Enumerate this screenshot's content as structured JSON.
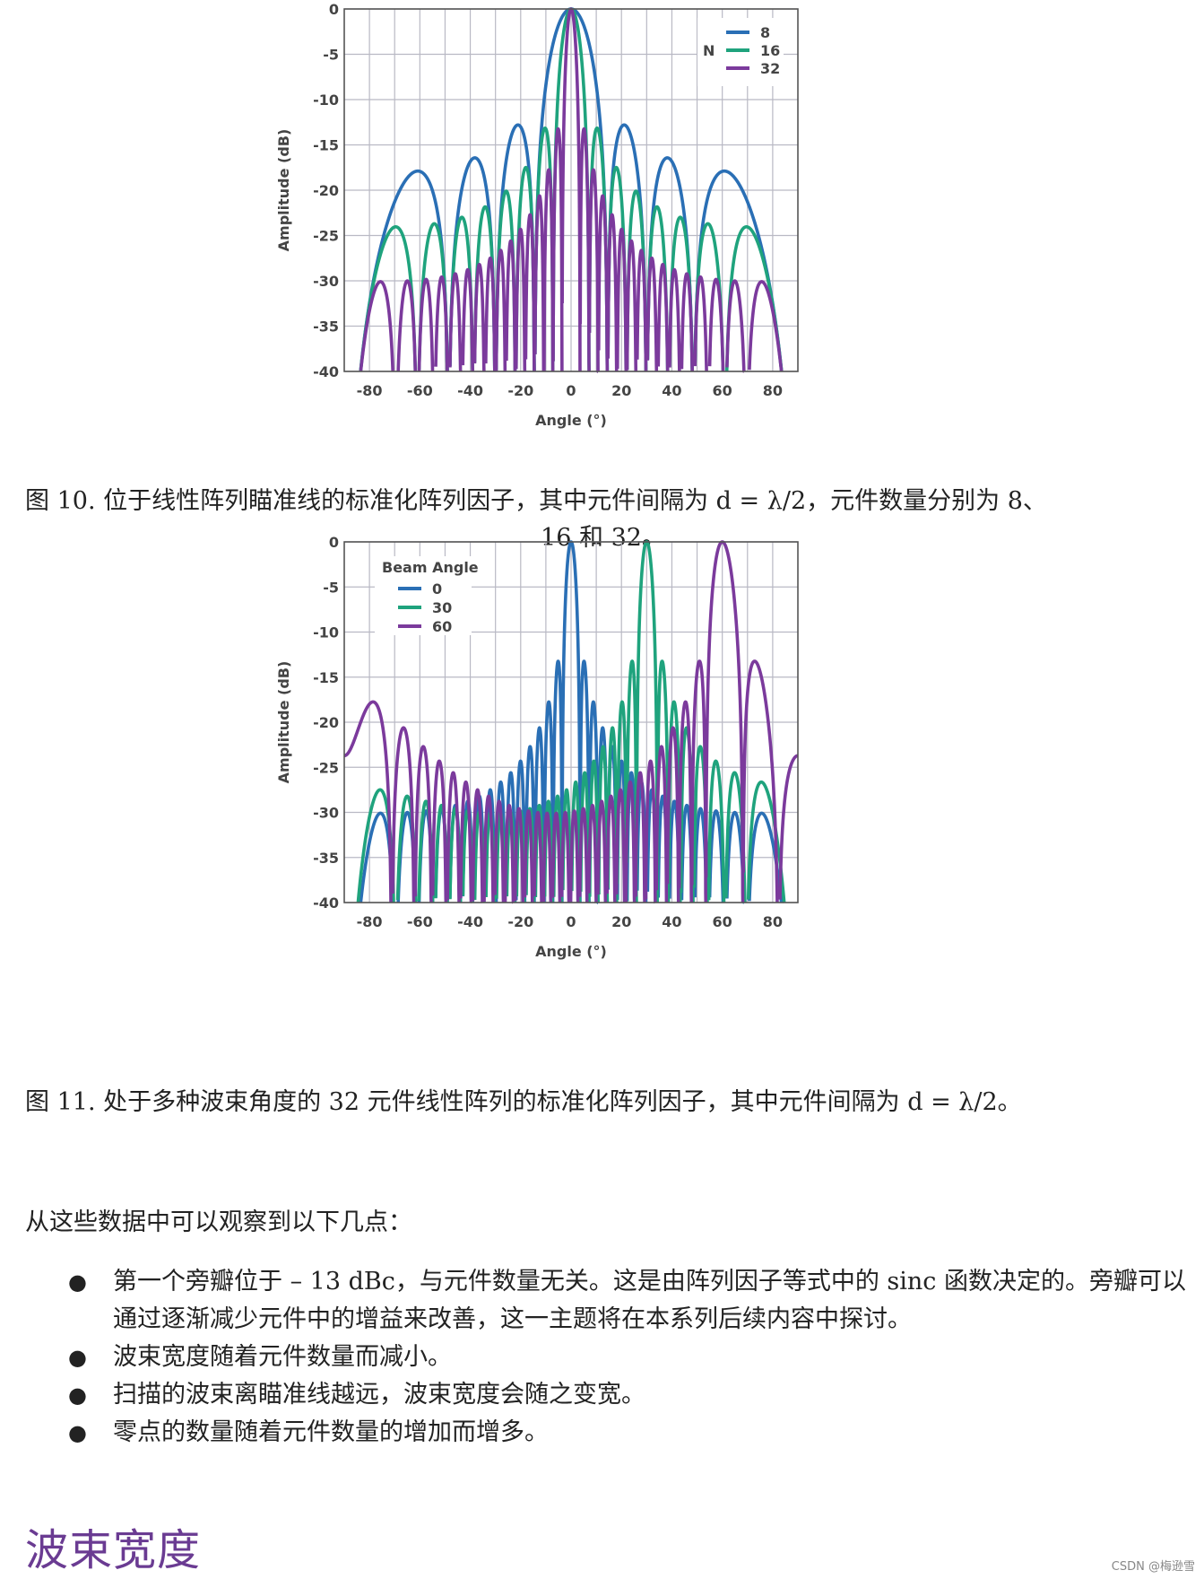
{
  "chart_data": [
    {
      "type": "line",
      "title": "",
      "xlabel": "Angle (°)",
      "ylabel": "Amplitude (dB)",
      "xlim": [
        -90,
        90
      ],
      "ylim": [
        -40,
        0
      ],
      "xticks": [
        "-80",
        "-60",
        "-40",
        "-20",
        "0",
        "20",
        "40",
        "60",
        "80"
      ],
      "yticks": [
        "0",
        "-5",
        "-10",
        "-15",
        "-20",
        "-25",
        "-30",
        "-35",
        "-40"
      ],
      "grid": true,
      "legend_title": "N",
      "legend_placement": "top-right",
      "series": [
        {
          "name": "8",
          "color": "#2a6fb5",
          "elements": 8,
          "steer_deg": 0
        },
        {
          "name": "16",
          "color": "#1fa37d",
          "elements": 16,
          "steer_deg": 0
        },
        {
          "name": "32",
          "color": "#7b3a9c",
          "elements": 32,
          "steer_deg": 0
        }
      ]
    },
    {
      "type": "line",
      "title": "",
      "xlabel": "Angle (°)",
      "ylabel": "Amplitude (dB)",
      "xlim": [
        -90,
        90
      ],
      "ylim": [
        -40,
        0
      ],
      "xticks": [
        "-80",
        "-60",
        "-40",
        "-20",
        "0",
        "20",
        "40",
        "60",
        "80"
      ],
      "yticks": [
        "0",
        "-5",
        "-10",
        "-15",
        "-20",
        "-25",
        "-30",
        "-35",
        "-40"
      ],
      "grid": true,
      "legend_title": "Beam Angle",
      "legend_placement": "top-left",
      "series": [
        {
          "name": "0",
          "color": "#2a6fb5",
          "elements": 32,
          "steer_deg": 0
        },
        {
          "name": "30",
          "color": "#1fa37d",
          "elements": 32,
          "steer_deg": 30
        },
        {
          "name": "60",
          "color": "#7b3a9c",
          "elements": 32,
          "steer_deg": 60
        }
      ]
    }
  ],
  "captions": {
    "fig10_line1": "图 10. 位于线性阵列瞄准线的标准化阵列因子，其中元件间隔为 d = λ/2，元件数量分别为 8、",
    "fig10_line2": "16 和 32。",
    "fig11": "图 11. 处于多种波束角度的 32 元件线性阵列的标准化阵列因子，其中元件间隔为 d =  λ/2。"
  },
  "intro": "从这些数据中可以观察到以下几点：",
  "bullets": [
    "第一个旁瓣位于 – 13 dBc，与元件数量无关。这是由阵列因子等式中的 sinc 函数决定的。旁瓣可以通过逐渐减少元件中的增益来改善，这一主题将在本系列后续内容中探讨。",
    "波束宽度随着元件数量而减小。",
    "扫描的波束离瞄准线越远，波束宽度会随之变宽。",
    "零点的数量随着元件数量的增加而增多。"
  ],
  "section_heading": "波束宽度",
  "watermark": "CSDN @梅逊雪"
}
